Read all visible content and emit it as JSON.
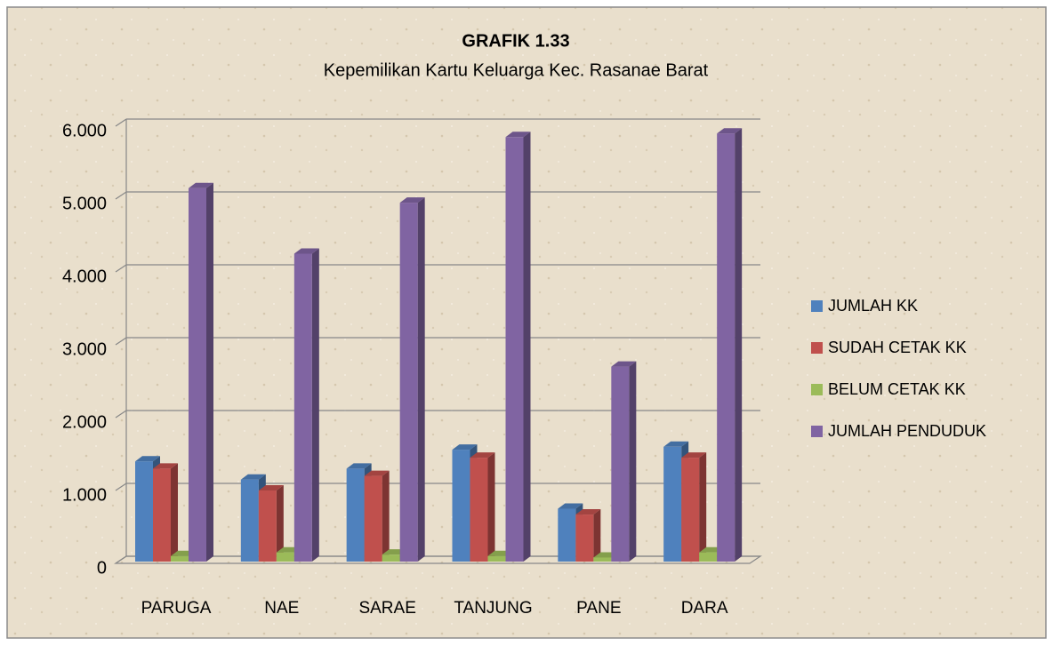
{
  "chart_data": {
    "type": "bar3d",
    "title": "GRAFIK 1.33",
    "subtitle": "Kepemilikan Kartu Keluarga Kec. Rasanae Barat",
    "categories": [
      "PARUGA",
      "NAE",
      "SARAE",
      "TANJUNG",
      "PANE",
      "DARA"
    ],
    "series": [
      {
        "name": "JUMLAH KK",
        "color": "#4f81bd",
        "values": [
          1400,
          1150,
          1300,
          1560,
          750,
          1600
        ]
      },
      {
        "name": "SUDAH CETAK KK",
        "color": "#c0504d",
        "values": [
          1300,
          1000,
          1200,
          1450,
          670,
          1450
        ]
      },
      {
        "name": "BELUM CETAK KK",
        "color": "#9bbb59",
        "values": [
          100,
          150,
          120,
          100,
          80,
          150
        ]
      },
      {
        "name": "JUMLAH PENDUDUK",
        "color": "#8064a2",
        "values": [
          5150,
          4250,
          4950,
          5850,
          2700,
          5900
        ]
      }
    ],
    "ylim": [
      0,
      6000
    ],
    "yticks": [
      0,
      {
        "value": 1000,
        "label": "1.000"
      },
      {
        "value": 2000,
        "label": "2.000"
      },
      {
        "value": 3000,
        "label": "3.000"
      },
      {
        "value": 4000,
        "label": "4.000"
      },
      {
        "value": 5000,
        "label": "5.000"
      },
      {
        "value": 6000,
        "label": "6.000"
      }
    ],
    "grid": true,
    "legend": "right"
  }
}
